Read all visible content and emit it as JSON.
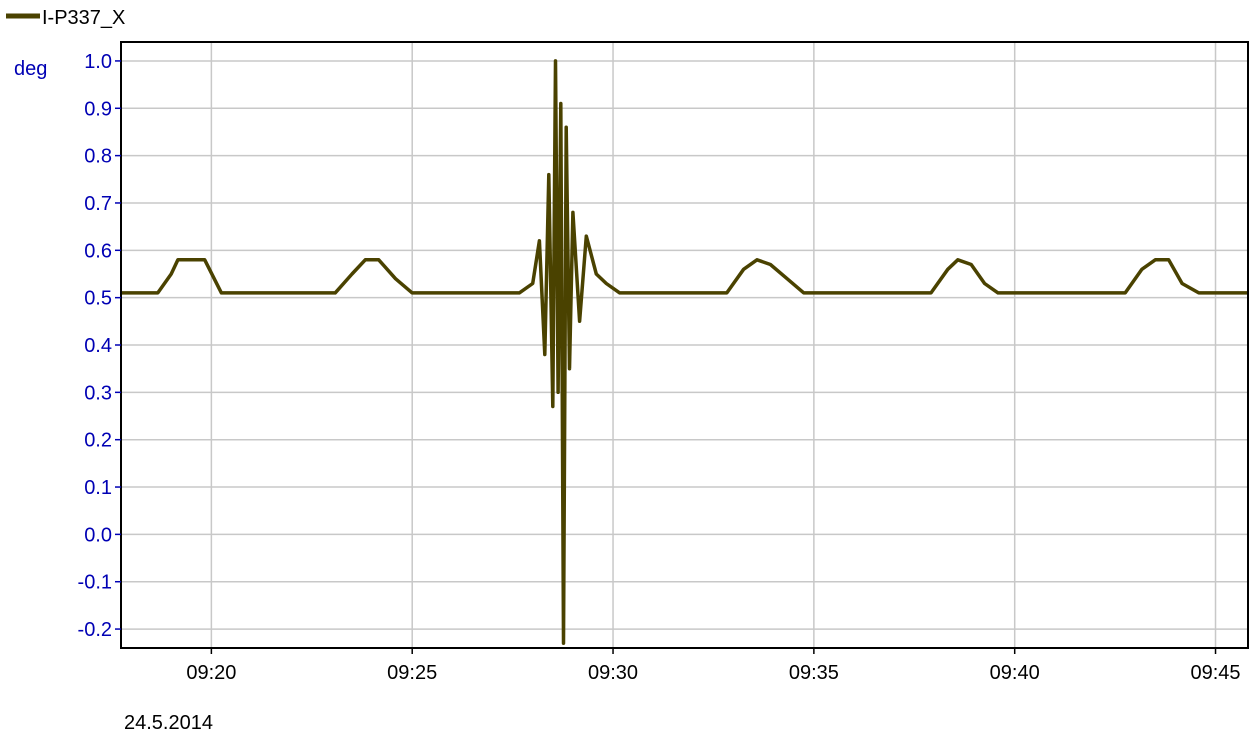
{
  "chart_data": {
    "type": "line",
    "title": "",
    "xlabel": "",
    "ylabel": "deg",
    "date_label": "24.5.2014",
    "xlim": [
      "09:17:45",
      "09:45:50"
    ],
    "ylim": [
      -0.24,
      1.04
    ],
    "grid": true,
    "legend_position": "top-left",
    "x_ticks": [
      "09:20",
      "09:25",
      "09:30",
      "09:35",
      "09:40",
      "09:45"
    ],
    "y_ticks": [
      "1.0",
      "0.9",
      "0.8",
      "0.7",
      "0.6",
      "0.5",
      "0.4",
      "0.3",
      "0.2",
      "0.1",
      "0.0",
      "-0.1",
      "-0.2"
    ],
    "colors": {
      "series": "#4a4200",
      "axis_labels": "#0000b4",
      "grid": "#c8c8c8"
    },
    "series": [
      {
        "name": "I-P337_X",
        "x": [
          "09:17:45",
          "09:18:40",
          "09:19:00",
          "09:19:10",
          "09:19:30",
          "09:19:50",
          "09:20:15",
          "09:23:05",
          "09:23:30",
          "09:23:50",
          "09:24:10",
          "09:24:35",
          "09:25:00",
          "09:27:40",
          "09:28:00",
          "09:28:10",
          "09:28:18",
          "09:28:24",
          "09:28:30",
          "09:28:34",
          "09:28:38",
          "09:28:42",
          "09:28:46",
          "09:28:50",
          "09:28:55",
          "09:29:00",
          "09:29:10",
          "09:29:20",
          "09:29:35",
          "09:29:50",
          "09:30:10",
          "09:30:40",
          "09:31:20",
          "09:32:50",
          "09:33:15",
          "09:33:35",
          "09:33:55",
          "09:34:20",
          "09:34:45",
          "09:37:55",
          "09:38:20",
          "09:38:35",
          "09:38:55",
          "09:39:15",
          "09:39:35",
          "09:42:45",
          "09:43:10",
          "09:43:30",
          "09:43:50",
          "09:44:10",
          "09:44:35",
          "09:45:50"
        ],
        "values": [
          0.51,
          0.51,
          0.55,
          0.58,
          0.58,
          0.58,
          0.51,
          0.51,
          0.55,
          0.58,
          0.58,
          0.54,
          0.51,
          0.51,
          0.53,
          0.62,
          0.38,
          0.76,
          0.27,
          1.0,
          0.3,
          0.91,
          -0.23,
          0.86,
          0.35,
          0.68,
          0.45,
          0.63,
          0.55,
          0.53,
          0.51,
          0.51,
          0.51,
          0.51,
          0.56,
          0.58,
          0.57,
          0.54,
          0.51,
          0.51,
          0.56,
          0.58,
          0.57,
          0.53,
          0.51,
          0.51,
          0.56,
          0.58,
          0.58,
          0.53,
          0.51,
          0.51
        ]
      }
    ]
  }
}
